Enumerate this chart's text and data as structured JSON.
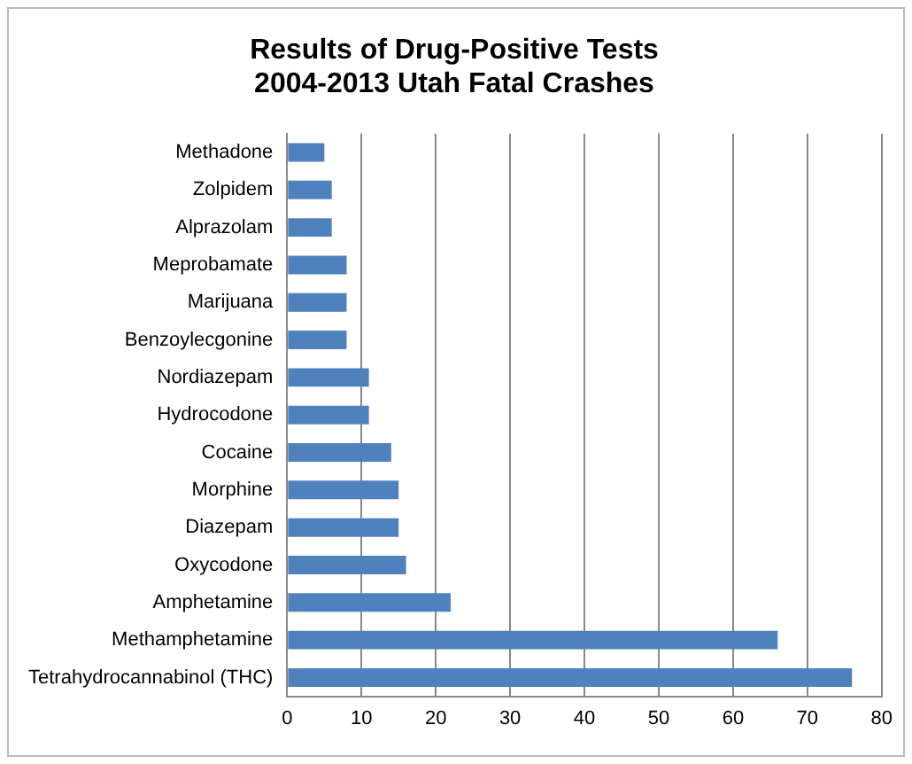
{
  "chart_data": {
    "type": "bar",
    "orientation": "horizontal",
    "title": "Results of Drug-Positive Tests\n2004-2013 Utah Fatal Crashes",
    "categories": [
      "Methadone",
      "Zolpidem",
      "Alprazolam",
      "Meprobamate",
      "Marijuana",
      "Benzoylecgonine",
      "Nordiazepam",
      "Hydrocodone",
      "Cocaine",
      "Morphine",
      "Diazepam",
      "Oxycodone",
      "Amphetamine",
      "Methamphetamine",
      "Tetrahydrocannabinol (THC)"
    ],
    "values": [
      5,
      6,
      6,
      8,
      8,
      8,
      11,
      11,
      14,
      15,
      15,
      16,
      22,
      66,
      76
    ],
    "color": "#4f81bd",
    "xlim": [
      0,
      80
    ],
    "xticks": [
      0,
      10,
      20,
      30,
      40,
      50,
      60,
      70,
      80
    ],
    "grid": "x"
  }
}
